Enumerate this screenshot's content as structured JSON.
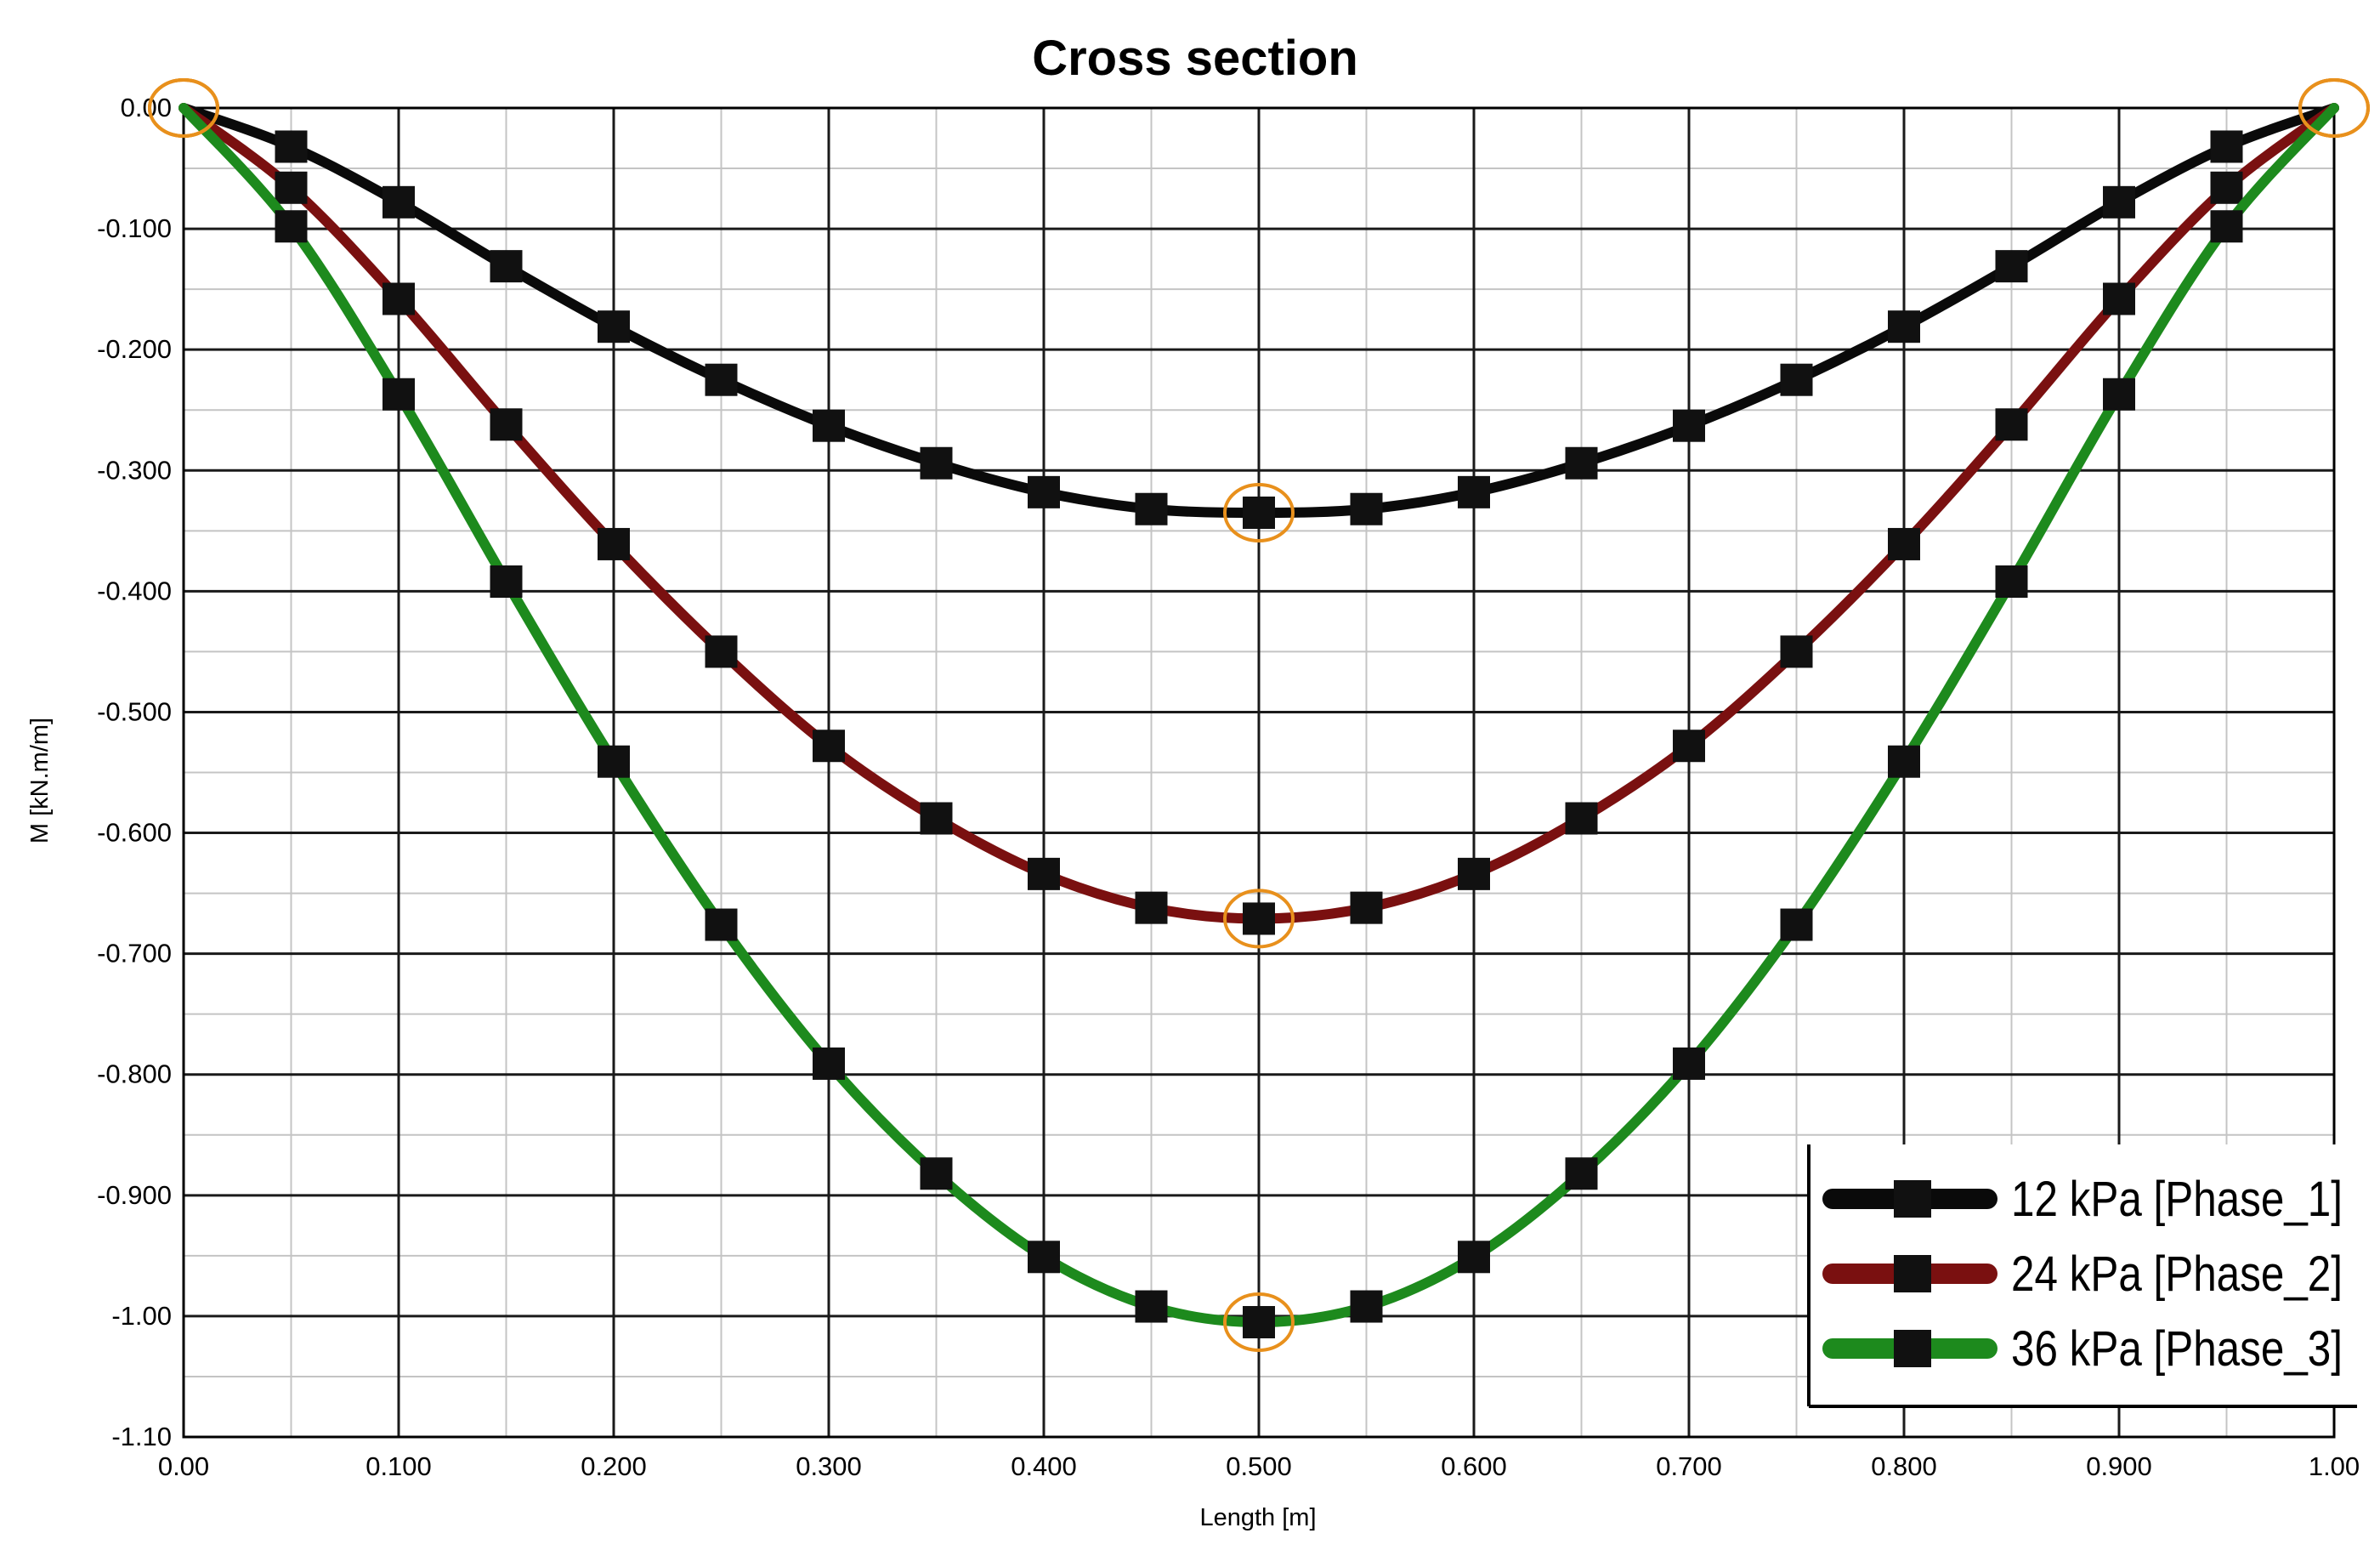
{
  "chart_data": {
    "type": "line",
    "title": "Cross section",
    "xlabel": "Length [m]",
    "ylabel": "M [kN.m/m]",
    "xlim": [
      0,
      1.0
    ],
    "ylim": [
      -1.1,
      0
    ],
    "grid": true,
    "legend_position": "bottom-right",
    "x_ticks": [
      "0.00",
      "0.100",
      "0.200",
      "0.300",
      "0.400",
      "0.500",
      "0.600",
      "0.700",
      "0.800",
      "0.900",
      "1.00"
    ],
    "y_ticks": [
      "0.00",
      "-0.100",
      "-0.200",
      "-0.300",
      "-0.400",
      "-0.500",
      "-0.600",
      "-0.700",
      "-0.800",
      "-0.900",
      "-1.00",
      "-1.10"
    ],
    "x": [
      0,
      0.05,
      0.1,
      0.15,
      0.2,
      0.25,
      0.3,
      0.35,
      0.4,
      0.45,
      0.5,
      0.55,
      0.6,
      0.65,
      0.7,
      0.75,
      0.8,
      0.85,
      0.9,
      0.95,
      1.0
    ],
    "series": [
      {
        "name": "12 kPa [Phase_1]",
        "color": "#0a0a0a",
        "values": [
          0,
          -0.032,
          -0.078,
          -0.131,
          -0.181,
          -0.225,
          -0.263,
          -0.294,
          -0.318,
          -0.332,
          -0.335,
          -0.332,
          -0.318,
          -0.294,
          -0.263,
          -0.225,
          -0.181,
          -0.131,
          -0.078,
          -0.032,
          0
        ]
      },
      {
        "name": "24 kPa [Phase_2]",
        "color": "#7a1010",
        "values": [
          0,
          -0.066,
          -0.158,
          -0.262,
          -0.361,
          -0.45,
          -0.528,
          -0.588,
          -0.634,
          -0.662,
          -0.671,
          -0.662,
          -0.634,
          -0.588,
          -0.528,
          -0.45,
          -0.361,
          -0.262,
          -0.158,
          -0.066,
          0
        ]
      },
      {
        "name": "36 kPa [Phase_3]",
        "color": "#1d8a1d",
        "values": [
          0,
          -0.098,
          -0.237,
          -0.392,
          -0.541,
          -0.676,
          -0.791,
          -0.882,
          -0.951,
          -0.992,
          -1.005,
          -0.992,
          -0.951,
          -0.882,
          -0.791,
          -0.676,
          -0.541,
          -0.392,
          -0.237,
          -0.098,
          0
        ]
      }
    ],
    "highlight_color": "#e8901c",
    "highlighted_x": [
      0,
      0.5,
      1.0
    ]
  }
}
